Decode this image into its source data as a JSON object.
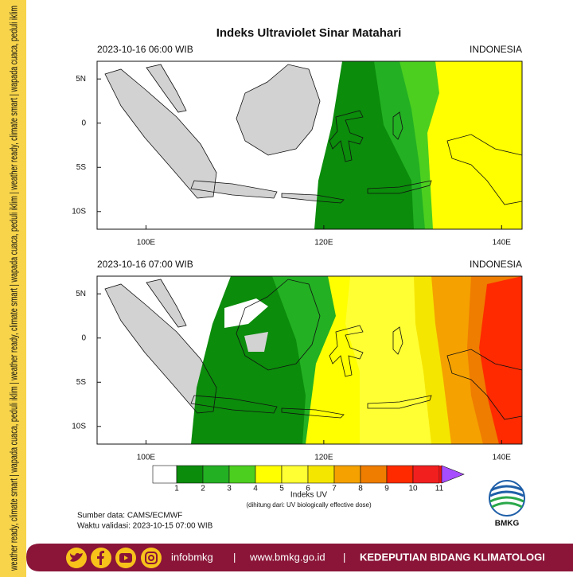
{
  "side_text": "weather ready, climate smart  |  wapada cuaca, peduli iklim  |  weather ready, climate smart  |  wapada cuaca, peduli iklim  |  weather ready, climate smart  |  wapada cuaca, peduli iklim",
  "title": "Indeks Ultraviolet Sinar Matahari",
  "panels": [
    {
      "time": "2023-10-16  06:00 WIB",
      "region": "INDONESIA"
    },
    {
      "time": "2023-10-16  07:00 WIB",
      "region": "INDONESIA"
    }
  ],
  "map": {
    "lon_range": [
      94.5,
      142.3
    ],
    "lat_range": [
      -12,
      7
    ],
    "lon_ticks": [
      {
        "value": 100,
        "label": "100E"
      },
      {
        "value": 120,
        "label": "120E"
      },
      {
        "value": 140,
        "label": "140E"
      }
    ],
    "lat_ticks": [
      {
        "value": 5,
        "label": "5N"
      },
      0,
      {
        "value": -5,
        "label": "5S"
      },
      {
        "value": -10,
        "label": "10S"
      }
    ]
  },
  "colorbar": {
    "levels": [
      1,
      2,
      3,
      4,
      5,
      6,
      7,
      8,
      9,
      10,
      11
    ],
    "colors": [
      "#ffffff",
      "#0b8c0b",
      "#23b023",
      "#4ccf1f",
      "#ffff00",
      "#ffff33",
      "#f5e600",
      "#f5a100",
      "#ef7d00",
      "#ff2a00",
      "#f21f1f",
      "#e81414",
      "#a64dff"
    ],
    "label": "Indeks UV",
    "note": "(dihitung dari: UV biologically effective dose)"
  },
  "source": "Sumber data: CAMS/ECMWF",
  "validity": "Waktu validasi: 2023-10-15 07:00 WIB",
  "logo": "BMKG",
  "footer": {
    "handle": "infobmkg",
    "separator": "|",
    "website": "www.bmkg.go.id",
    "department": "KEDEPUTIAN BIDANG KLIMATOLOGI"
  }
}
